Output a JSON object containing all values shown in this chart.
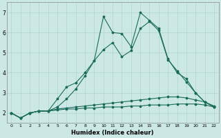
{
  "xlabel": "Humidex (Indice chaleur)",
  "background_color": "#cce8e4",
  "grid_color": "#b0d4cc",
  "line_color": "#1a6b5a",
  "xlim": [
    -0.5,
    22.5
  ],
  "ylim": [
    1.5,
    7.5
  ],
  "xticks": [
    0,
    1,
    2,
    3,
    4,
    5,
    6,
    7,
    8,
    9,
    10,
    11,
    12,
    13,
    14,
    15,
    16,
    17,
    18,
    19,
    20,
    21,
    22
  ],
  "yticks": [
    2,
    3,
    4,
    5,
    6,
    7
  ],
  "line1_x": [
    0,
    1,
    2,
    3,
    4,
    5,
    6,
    7,
    8,
    9,
    10,
    11,
    12,
    13,
    14,
    15,
    16,
    17,
    18,
    19,
    20,
    21,
    22
  ],
  "line1_y": [
    2.0,
    1.75,
    2.0,
    2.1,
    2.1,
    2.15,
    2.2,
    2.2,
    2.25,
    2.25,
    2.3,
    2.3,
    2.3,
    2.35,
    2.35,
    2.4,
    2.4,
    2.4,
    2.45,
    2.45,
    2.45,
    2.4,
    2.3
  ],
  "line2_x": [
    0,
    1,
    2,
    3,
    4,
    5,
    6,
    7,
    8,
    9,
    10,
    11,
    12,
    13,
    14,
    15,
    16,
    17,
    18,
    19,
    20,
    21,
    22
  ],
  "line2_y": [
    2.0,
    1.75,
    2.0,
    2.1,
    2.1,
    2.2,
    2.25,
    2.3,
    2.35,
    2.4,
    2.45,
    2.5,
    2.55,
    2.6,
    2.65,
    2.7,
    2.75,
    2.8,
    2.8,
    2.75,
    2.65,
    2.55,
    2.35
  ],
  "line3_x": [
    0,
    1,
    2,
    3,
    4,
    5,
    6,
    7,
    8,
    9,
    10,
    11,
    12,
    13,
    14,
    15,
    16,
    17,
    18,
    19,
    20,
    21,
    22
  ],
  "line3_y": [
    2.0,
    1.75,
    2.0,
    2.1,
    2.1,
    2.7,
    3.3,
    3.5,
    4.0,
    4.6,
    5.15,
    5.5,
    4.8,
    5.1,
    6.2,
    6.55,
    6.1,
    4.65,
    4.1,
    3.55,
    3.0,
    2.55,
    2.3
  ],
  "line4_x": [
    0,
    1,
    2,
    3,
    4,
    5,
    6,
    7,
    8,
    9,
    10,
    11,
    12,
    13,
    14,
    15,
    16,
    17,
    18,
    19,
    20,
    21,
    22
  ],
  "line4_y": [
    2.0,
    1.75,
    2.0,
    2.1,
    2.1,
    2.3,
    2.7,
    3.2,
    3.85,
    4.6,
    6.8,
    6.0,
    5.95,
    5.3,
    7.0,
    6.6,
    6.2,
    4.7,
    4.0,
    3.7,
    3.0,
    2.55,
    2.3
  ]
}
